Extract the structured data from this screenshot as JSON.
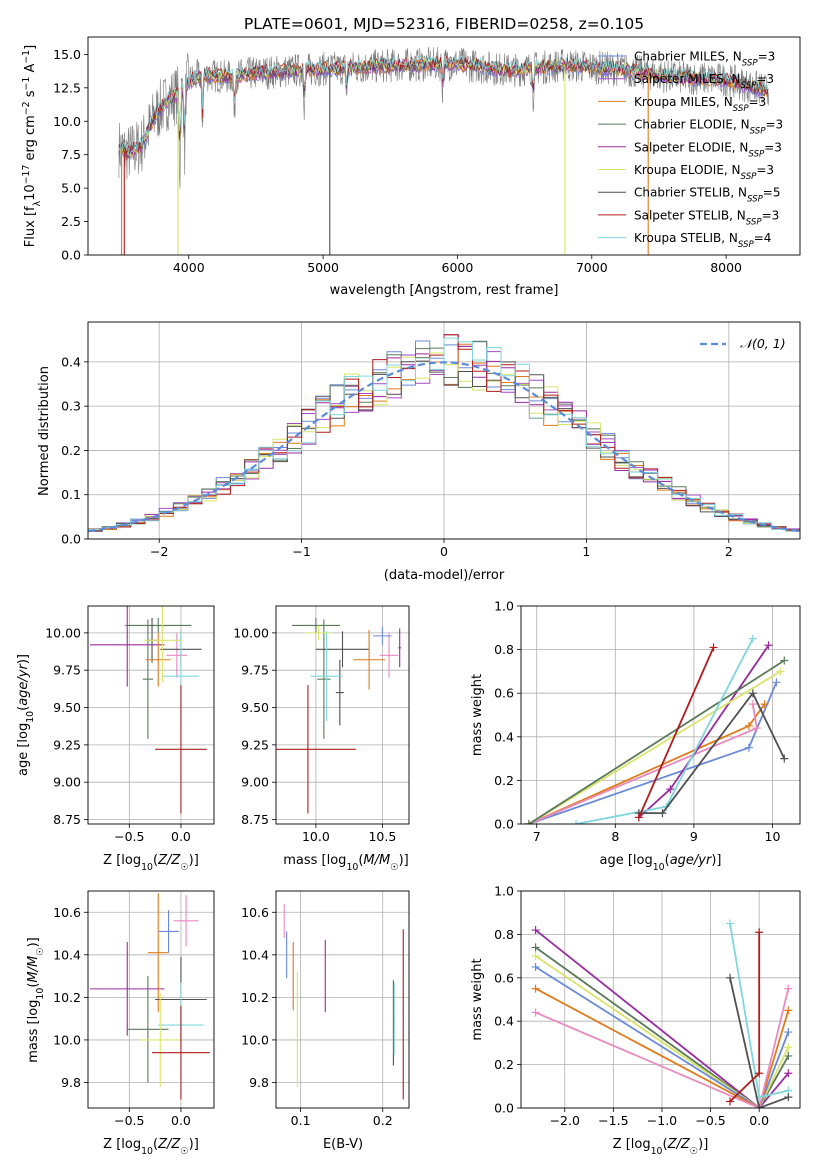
{
  "figure_title": "PLATE=0601, MJD=52316, FIBERID=0258, z=0.105",
  "colors": {
    "chabrier_miles": "#6a8ad8",
    "salpeter_miles": "#a64ac9",
    "kroupa_miles": "#e07b1a",
    "chabrier_elodie": "#5a7a5a",
    "salpeter_elodie": "#9a2aa0",
    "kroupa_elodie": "#d9e46a",
    "chabrier_stelib": "#505050",
    "salpeter_stelib": "#b01c1c",
    "kroupa_stelib": "#7fd6dc",
    "normal_curve": "#5b8bd9",
    "pink": "#e88abf",
    "grid": "#b0b0b0"
  },
  "chart_data": [
    {
      "id": "spectrum",
      "type": "line",
      "xlabel": "wavelength [Angstrom, rest frame]",
      "ylabel": "Flux [f_λ10⁻¹⁷ erg cm⁻² s⁻¹ A⁻¹]",
      "xlim": [
        3250,
        8550
      ],
      "ylim": [
        0,
        16.3
      ],
      "xticks": [
        4000,
        5000,
        6000,
        7000,
        8000
      ],
      "yticks": [
        0.0,
        2.5,
        5.0,
        7.5,
        10.0,
        12.5,
        15.0
      ],
      "xtick_labels": [
        "4000",
        "5000",
        "6000",
        "7000",
        "8000"
      ],
      "ytick_labels": [
        "0.0",
        "2.5",
        "5.0",
        "7.5",
        "10.0",
        "12.5",
        "15.0"
      ],
      "grid": false,
      "legend_placement": "right",
      "legend": [
        {
          "name": "Chabrier MILES",
          "nssp": "N",
          "sub": "SSP",
          "val": "=3",
          "color_key": "chabrier_miles"
        },
        {
          "name": "Salpeter MILES",
          "nssp": "N",
          "sub": "SSP",
          "val": "=3",
          "color_key": "salpeter_miles"
        },
        {
          "name": "Kroupa MILES",
          "nssp": "N",
          "sub": "SSP",
          "val": "=3",
          "color_key": "kroupa_miles"
        },
        {
          "name": "Chabrier ELODIE",
          "nssp": "N",
          "sub": "SSP",
          "val": "=3",
          "color_key": "chabrier_elodie"
        },
        {
          "name": "Salpeter ELODIE",
          "nssp": "N",
          "sub": "SSP",
          "val": "=3",
          "color_key": "salpeter_elodie"
        },
        {
          "name": "Kroupa ELODIE",
          "nssp": "N",
          "sub": "SSP",
          "val": "=3",
          "color_key": "kroupa_elodie"
        },
        {
          "name": "Chabrier STELIB",
          "nssp": "N",
          "sub": "SSP",
          "val": "=5",
          "color_key": "chabrier_stelib"
        },
        {
          "name": "Salpeter STELIB",
          "nssp": "N",
          "sub": "SSP",
          "val": "=3",
          "color_key": "salpeter_stelib"
        },
        {
          "name": "Kroupa STELIB",
          "nssp": "N",
          "sub": "SSP",
          "val": "=4",
          "color_key": "kroupa_stelib"
        }
      ],
      "model_continuum": {
        "x": [
          3480,
          3550,
          3650,
          3750,
          3850,
          3950,
          4000,
          4100,
          4300,
          4500,
          4800,
          5200,
          5600,
          6000,
          6400,
          6800,
          7200,
          7600,
          8000,
          8300
        ],
        "y": [
          8.0,
          7.6,
          8.2,
          10.5,
          11.6,
          12.2,
          13.0,
          13.5,
          13.3,
          13.6,
          13.8,
          14.0,
          14.2,
          14.3,
          13.8,
          14.2,
          13.9,
          13.3,
          13.1,
          12.3
        ]
      }
    },
    {
      "id": "residuals",
      "type": "histogram",
      "xlabel": "(data-model)/error",
      "ylabel": "Normed distribution",
      "xlim": [
        -2.5,
        2.5
      ],
      "ylim": [
        0,
        0.49
      ],
      "xticks": [
        -2,
        -1,
        0,
        1,
        2
      ],
      "yticks": [
        0.0,
        0.1,
        0.2,
        0.3,
        0.4
      ],
      "xtick_labels": [
        "−2",
        "−1",
        "0",
        "1",
        "2"
      ],
      "ytick_labels": [
        "0.0",
        "0.1",
        "0.2",
        "0.3",
        "0.4"
      ],
      "grid": true,
      "legend_placement": "top-right",
      "legend": [
        {
          "name": "𝒩(0, 1)",
          "color_key": "normal_curve"
        }
      ],
      "bin_width": 0.1
    },
    {
      "id": "age_vs_Z",
      "type": "scatter",
      "xlabel": "Z [log10(Z/Z☉)]",
      "ylabel": "age  [log10(age/yr)]",
      "xlim": [
        -0.9,
        0.32
      ],
      "ylim": [
        8.72,
        10.18
      ],
      "xticks": [
        -0.5,
        0.0
      ],
      "yticks": [
        8.75,
        9.0,
        9.25,
        9.5,
        9.75,
        10.0
      ],
      "xtick_labels": [
        "−0.5",
        "0.0"
      ],
      "ytick_labels": [
        "8.75",
        "9.00",
        "9.25",
        "9.50",
        "9.75",
        "10.00"
      ],
      "grid": true
    },
    {
      "id": "age_vs_mass",
      "type": "scatter",
      "xlabel": "mass [log10(M/M☉)]",
      "ylabel": "",
      "xlim": [
        9.7,
        10.7
      ],
      "ylim": [
        8.72,
        10.18
      ],
      "xticks": [
        10.0,
        10.5
      ],
      "yticks": [
        8.75,
        9.0,
        9.25,
        9.5,
        9.75,
        10.0
      ],
      "xtick_labels": [
        "10.0",
        "10.5"
      ],
      "ytick_labels": [
        "8.75",
        "9.00",
        "9.25",
        "9.50",
        "9.75",
        "10.00"
      ],
      "grid": true
    },
    {
      "id": "massweight_vs_age",
      "type": "line",
      "xlabel": "age  [log10(age/yr)]",
      "ylabel": "mass weight",
      "xlim": [
        6.8,
        10.35
      ],
      "ylim": [
        0.0,
        1.0
      ],
      "xticks": [
        7,
        8,
        9,
        10
      ],
      "yticks": [
        0.0,
        0.2,
        0.4,
        0.6,
        0.8,
        1.0
      ],
      "xtick_labels": [
        "7",
        "8",
        "9",
        "10"
      ],
      "ytick_labels": [
        "0.0",
        "0.2",
        "0.4",
        "0.6",
        "0.8",
        "1.0"
      ],
      "grid": true,
      "series": [
        {
          "color_key": "chabrier_miles",
          "x": [
            6.9,
            9.7,
            10.05
          ],
          "y": [
            0.0,
            0.35,
            0.65
          ]
        },
        {
          "color_key": "kroupa_miles",
          "x": [
            6.9,
            9.7,
            9.9
          ],
          "y": [
            0.0,
            0.45,
            0.55
          ]
        },
        {
          "color_key": "pink",
          "x": [
            6.9,
            9.8,
            9.75
          ],
          "y": [
            0.0,
            0.44,
            0.55
          ]
        },
        {
          "color_key": "salpeter_elodie",
          "x": [
            8.3,
            8.7,
            9.95
          ],
          "y": [
            0.03,
            0.16,
            0.82
          ]
        },
        {
          "color_key": "kroupa_elodie",
          "x": [
            6.9,
            10.1
          ],
          "y": [
            0.0,
            0.7
          ]
        },
        {
          "color_key": "chabrier_elodie",
          "x": [
            6.9,
            10.15
          ],
          "y": [
            0.0,
            0.75
          ]
        },
        {
          "color_key": "kroupa_stelib",
          "x": [
            7.5,
            8.65,
            9.75
          ],
          "y": [
            0.0,
            0.08,
            0.85
          ]
        },
        {
          "color_key": "chabrier_stelib",
          "x": [
            8.3,
            8.6,
            9.75,
            10.15
          ],
          "y": [
            0.05,
            0.05,
            0.6,
            0.3
          ]
        },
        {
          "color_key": "salpeter_stelib",
          "x": [
            8.3,
            9.25
          ],
          "y": [
            0.03,
            0.81
          ]
        }
      ]
    },
    {
      "id": "mass_vs_Z",
      "type": "scatter",
      "xlabel": "Z [log10(Z/Z☉)]",
      "ylabel": "mass [log10(M/M☉)]",
      "xlim": [
        -0.9,
        0.32
      ],
      "ylim": [
        9.68,
        10.7
      ],
      "xticks": [
        -0.5,
        0.0
      ],
      "yticks": [
        9.8,
        10.0,
        10.2,
        10.4,
        10.6
      ],
      "xtick_labels": [
        "−0.5",
        "0.0"
      ],
      "ytick_labels": [
        "9.8",
        "10.0",
        "10.2",
        "10.4",
        "10.6"
      ],
      "grid": true
    },
    {
      "id": "mass_vs_ebv",
      "type": "scatter",
      "xlabel": "E(B-V)",
      "ylabel": "",
      "xlim": [
        0.07,
        0.232
      ],
      "ylim": [
        9.68,
        10.7
      ],
      "xticks": [
        0.1,
        0.2
      ],
      "yticks": [
        9.8,
        10.0,
        10.2,
        10.4,
        10.6
      ],
      "xtick_labels": [
        "0.1",
        "0.2"
      ],
      "ytick_labels": [
        "9.8",
        "10.0",
        "10.2",
        "10.4",
        "10.6"
      ],
      "grid": true
    },
    {
      "id": "massweight_vs_Z",
      "type": "line",
      "xlabel": "Z [log10(Z/Z☉)]",
      "ylabel": "mass weight",
      "xlim": [
        -2.45,
        0.42
      ],
      "ylim": [
        0.0,
        1.0
      ],
      "xticks": [
        -2.0,
        -1.5,
        -1.0,
        -0.5,
        0.0
      ],
      "yticks": [
        0.0,
        0.2,
        0.4,
        0.6,
        0.8,
        1.0
      ],
      "xtick_labels": [
        "−2.0",
        "−1.5",
        "−1.0",
        "−0.5",
        "0.0"
      ],
      "ytick_labels": [
        "0.0",
        "0.2",
        "0.4",
        "0.6",
        "0.8",
        "1.0"
      ],
      "grid": true,
      "series": [
        {
          "color_key": "salpeter_elodie",
          "x": [
            -2.3,
            0.0,
            0.3
          ],
          "y": [
            0.82,
            0.0,
            0.16
          ]
        },
        {
          "color_key": "chabrier_elodie",
          "x": [
            -2.3,
            0.0,
            0.3
          ],
          "y": [
            0.74,
            0.0,
            0.24
          ]
        },
        {
          "color_key": "kroupa_elodie",
          "x": [
            -2.3,
            0.0,
            0.3
          ],
          "y": [
            0.7,
            0.0,
            0.28
          ]
        },
        {
          "color_key": "chabrier_miles",
          "x": [
            -2.3,
            0.0,
            0.3
          ],
          "y": [
            0.65,
            0.0,
            0.35
          ]
        },
        {
          "color_key": "kroupa_miles",
          "x": [
            -2.3,
            0.0,
            0.3
          ],
          "y": [
            0.55,
            0.0,
            0.45
          ]
        },
        {
          "color_key": "pink",
          "x": [
            -2.3,
            0.0,
            0.3
          ],
          "y": [
            0.44,
            0.0,
            0.55
          ]
        },
        {
          "color_key": "kroupa_stelib",
          "x": [
            -0.3,
            0.0,
            0.3
          ],
          "y": [
            0.85,
            0.05,
            0.08
          ]
        },
        {
          "color_key": "chabrier_stelib",
          "x": [
            -0.3,
            0.0,
            0.3
          ],
          "y": [
            0.6,
            0.0,
            0.05
          ]
        },
        {
          "color_key": "salpeter_stelib",
          "x": [
            -0.3,
            0.0,
            0.0
          ],
          "y": [
            0.03,
            0.16,
            0.81
          ]
        }
      ]
    }
  ]
}
